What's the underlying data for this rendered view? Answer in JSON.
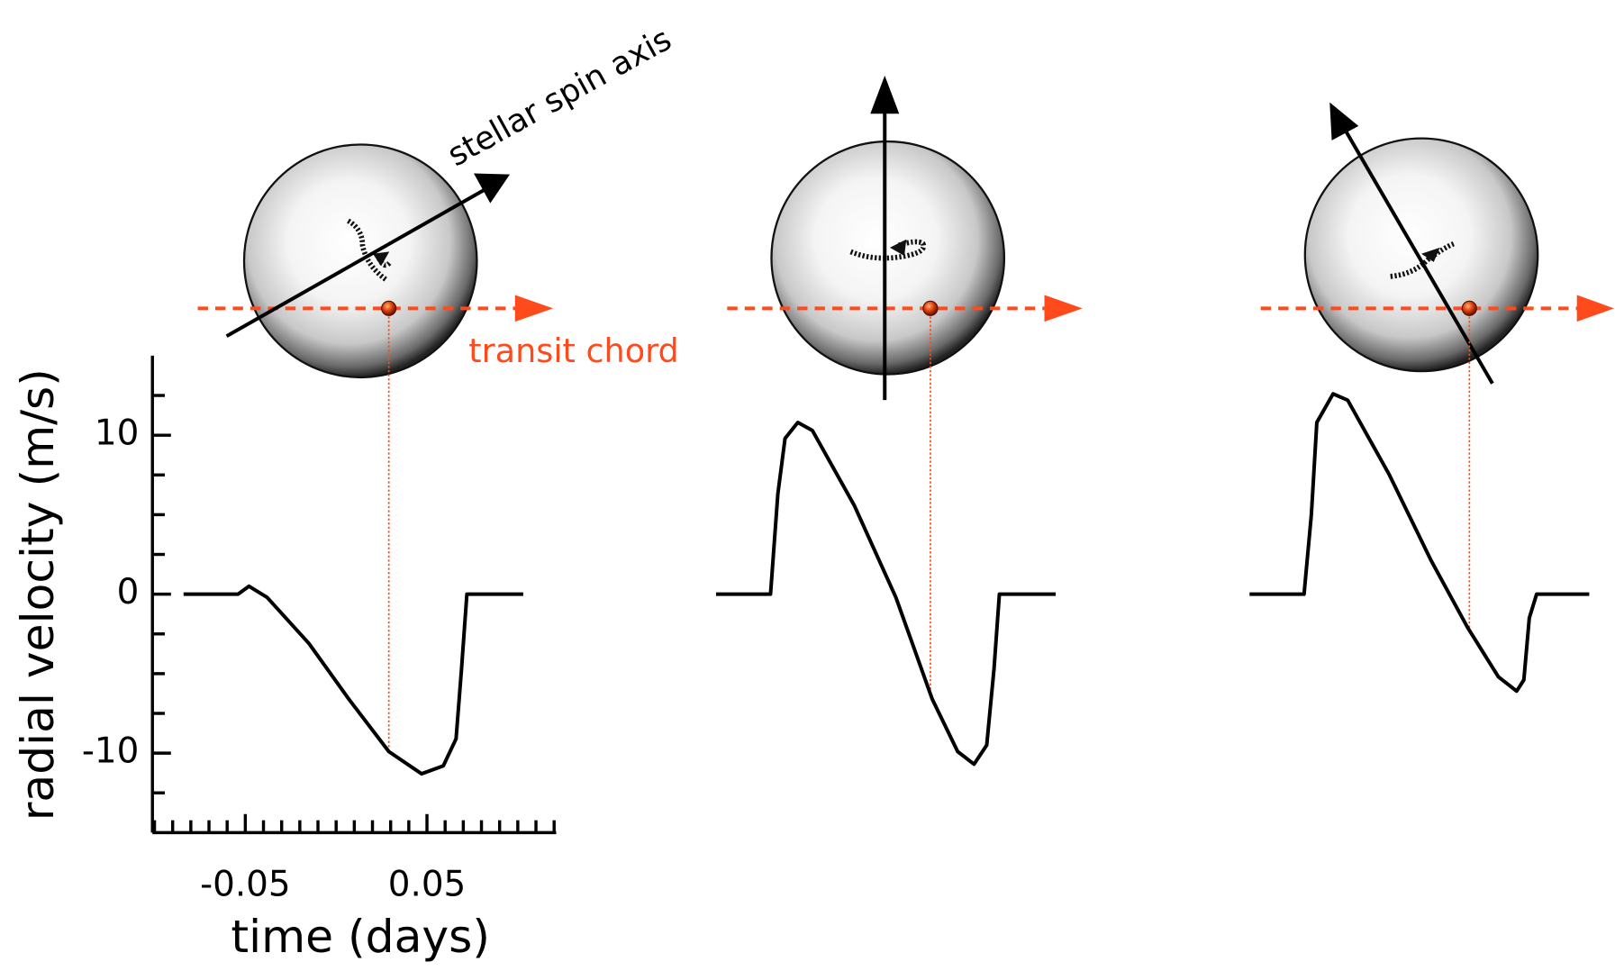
{
  "annotations": {
    "spin_axis": "stellar spin axis",
    "transit_chord": "transit chord"
  },
  "chart_data": [
    {
      "type": "line",
      "xlabel": "time (days)",
      "ylabel": "radial velocity (m/s)",
      "color": "#000000",
      "xlim": [
        -0.1,
        0.12
      ],
      "ylim": [
        -15,
        15
      ],
      "xticks": [
        -0.05,
        0.05
      ],
      "yticks": [
        10,
        0,
        -10
      ],
      "xminorticks": [
        -0.1,
        -0.09,
        -0.08,
        -0.07,
        -0.06,
        -0.04,
        -0.03,
        -0.02,
        -0.01,
        0,
        0.01,
        0.02,
        0.03,
        0.04,
        0.06,
        0.07,
        0.08,
        0.09,
        0.1,
        0.11,
        0.12
      ],
      "yminorticks": [
        12.5,
        7.5,
        5,
        2.5,
        -2.5,
        -5,
        -7.5,
        -12.5
      ],
      "x": [
        -0.084,
        -0.054,
        -0.048,
        -0.038,
        -0.015,
        0.007,
        0.029,
        0.047,
        0.059,
        0.066,
        0.069,
        0.072,
        0.103
      ],
      "values": [
        0,
        0,
        0.5,
        -0.2,
        -3.1,
        -6.6,
        -9.9,
        -11.3,
        -10.8,
        -9.1,
        -4.7,
        0,
        0
      ],
      "planet_x": 0.029
    },
    {
      "type": "line",
      "color": "#000000",
      "x": [
        -0.084,
        -0.054,
        -0.05,
        -0.046,
        -0.039,
        -0.031,
        -0.008,
        0.015,
        0.035,
        0.049,
        0.058,
        0.065,
        0.069,
        0.072,
        0.103
      ],
      "values": [
        0,
        0,
        6.3,
        9.8,
        10.8,
        10.3,
        5.6,
        -0.2,
        -6.6,
        -9.9,
        -10.7,
        -9.5,
        -4.7,
        0,
        0
      ],
      "planet_x": 0.034
    },
    {
      "type": "line",
      "color": "#000000",
      "x": [
        -0.084,
        -0.054,
        -0.05,
        -0.047,
        -0.038,
        -0.03,
        -0.007,
        0.016,
        0.036,
        0.053,
        0.063,
        0.067,
        0.07,
        0.074,
        0.103
      ],
      "values": [
        0,
        0,
        5.0,
        10.8,
        12.6,
        12.2,
        7.5,
        2.1,
        -2.1,
        -5.2,
        -6.1,
        -5.4,
        -1.5,
        0,
        0
      ],
      "planet_x": 0.037
    }
  ]
}
